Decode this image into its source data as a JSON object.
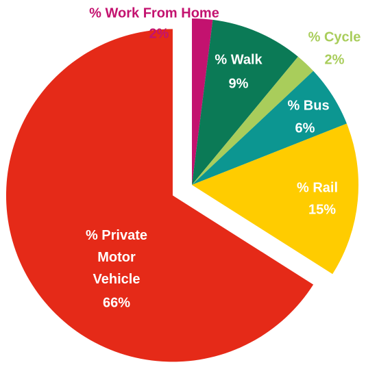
{
  "chart_data": {
    "type": "pie",
    "categories": [
      "% Work From Home",
      "% Walk",
      "% Cycle",
      "% Bus",
      "% Rail",
      "% Private Motor Vehicle"
    ],
    "values": [
      2,
      9,
      2,
      6,
      15,
      66
    ],
    "value_labels": [
      "2%",
      "9%",
      "2%",
      "6%",
      "15%",
      "66%"
    ],
    "colors": [
      "#c3126f",
      "#0b7a56",
      "#a9cd5b",
      "#0c9691",
      "#ffcc00",
      "#e52a18"
    ],
    "label_colors": [
      "#c3126f",
      "#ffffff",
      "#a9cd5b",
      "#ffffff",
      "#ffffff",
      "#ffffff"
    ]
  }
}
